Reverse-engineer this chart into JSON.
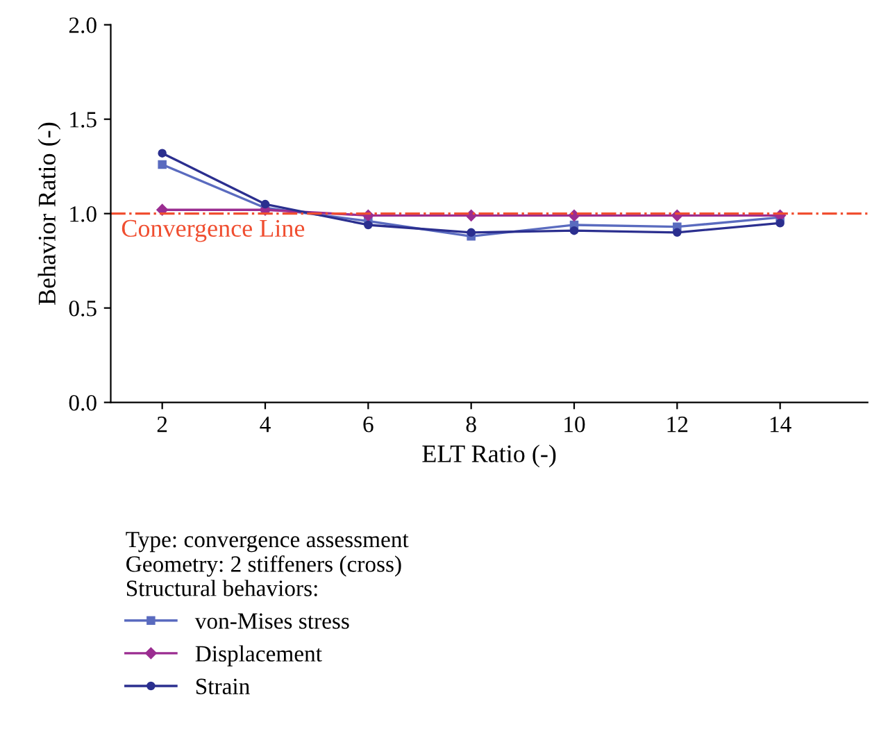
{
  "chart_data": {
    "type": "line",
    "xlabel": "ELT Ratio (-)",
    "ylabel": "Behavior Ratio (-)",
    "legend_title": "Type: convergence assessment\nGeometry: 2 stiffeners (cross)\nStructural behaviors:",
    "x": [
      2,
      4,
      6,
      8,
      10,
      12,
      14
    ],
    "series": [
      {
        "name": "von-Mises stress",
        "color": "#5a6bbf",
        "marker": "square",
        "values": [
          1.26,
          1.03,
          0.96,
          0.88,
          0.94,
          0.93,
          0.98
        ]
      },
      {
        "name": "Displacement",
        "color": "#9b2d91",
        "marker": "diamond",
        "values": [
          1.02,
          1.02,
          0.99,
          0.99,
          0.99,
          0.99,
          0.99
        ]
      },
      {
        "name": "Strain",
        "color": "#2b2f8f",
        "marker": "circle",
        "values": [
          1.32,
          1.05,
          0.94,
          0.9,
          0.91,
          0.9,
          0.95
        ]
      }
    ],
    "xlim": [
      1,
      15.7
    ],
    "ylim": [
      0,
      2.0
    ],
    "xticks": [
      2,
      4,
      6,
      8,
      10,
      12,
      14
    ],
    "yticks": [
      {
        "value": 0,
        "label": "0.0"
      },
      0.5,
      {
        "value": 1,
        "label": "1.0"
      },
      1.5,
      {
        "value": 2,
        "label": "2.0"
      }
    ],
    "ref_lines": [
      {
        "axis": "y",
        "value": 1.0,
        "label": "Convergence Line",
        "color": "#f04e30",
        "line_style": "dashdot"
      }
    ],
    "grid": false,
    "legend": "bottom",
    "line_style": "solid"
  }
}
